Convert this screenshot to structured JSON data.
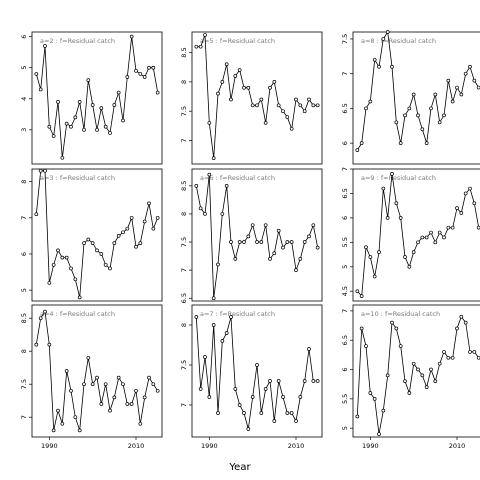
{
  "figure": {
    "xlabel": "Year"
  },
  "chart_data": [
    {
      "type": "line",
      "title": "a=2 : f=Residual catch",
      "xlim": [
        1986,
        2016
      ],
      "ylim": [
        1.9,
        6.15
      ],
      "xticks": [],
      "yticks": [
        3,
        4,
        5,
        6
      ],
      "x": [
        1987,
        1988,
        1989,
        1990,
        1991,
        1992,
        1993,
        1994,
        1995,
        1996,
        1997,
        1998,
        1999,
        2000,
        2001,
        2002,
        2003,
        2004,
        2005,
        2006,
        2007,
        2008,
        2009,
        2010,
        2011,
        2012,
        2013,
        2014,
        2015
      ],
      "y": [
        4.8,
        4.3,
        5.7,
        3.1,
        2.8,
        3.9,
        2.1,
        3.2,
        3.1,
        3.4,
        3.9,
        3.0,
        4.6,
        3.8,
        3.0,
        3.7,
        3.1,
        2.9,
        3.8,
        4.2,
        3.3,
        4.7,
        6.0,
        4.9,
        4.8,
        4.7,
        5.0,
        5.0,
        4.2
      ]
    },
    {
      "type": "line",
      "title": "a=5 : f=Residual catch",
      "xlim": [
        1986,
        2016
      ],
      "ylim": [
        6.6,
        8.85
      ],
      "xticks": [],
      "yticks": [
        7.0,
        7.5,
        8.0,
        8.5
      ],
      "x": [
        1987,
        1988,
        1989,
        1990,
        1991,
        1992,
        1993,
        1994,
        1995,
        1996,
        1997,
        1998,
        1999,
        2000,
        2001,
        2002,
        2003,
        2004,
        2005,
        2006,
        2007,
        2008,
        2009,
        2010,
        2011,
        2012,
        2013,
        2014,
        2015
      ],
      "y": [
        8.6,
        8.6,
        8.8,
        7.3,
        6.7,
        7.8,
        8.0,
        8.3,
        7.7,
        8.1,
        8.2,
        7.9,
        7.9,
        7.6,
        7.6,
        7.7,
        7.3,
        7.9,
        8.0,
        7.6,
        7.5,
        7.4,
        7.2,
        7.7,
        7.6,
        7.5,
        7.7,
        7.6,
        7.6
      ]
    },
    {
      "type": "line",
      "title": "a=8 : f=Residual catch",
      "xlim": [
        1986,
        2016
      ],
      "ylim": [
        5.7,
        7.6
      ],
      "xticks": [],
      "yticks": [
        6.0,
        6.5,
        7.0,
        7.5
      ],
      "x": [
        1987,
        1988,
        1989,
        1990,
        1991,
        1992,
        1993,
        1994,
        1995,
        1996,
        1997,
        1998,
        1999,
        2000,
        2001,
        2002,
        2003,
        2004,
        2005,
        2006,
        2007,
        2008,
        2009,
        2010,
        2011,
        2012,
        2013,
        2014,
        2015
      ],
      "y": [
        5.9,
        6.0,
        6.5,
        6.6,
        7.2,
        7.1,
        7.5,
        7.6,
        7.1,
        6.3,
        6.0,
        6.4,
        6.5,
        6.7,
        6.4,
        6.2,
        6.0,
        6.5,
        6.7,
        6.3,
        6.4,
        6.9,
        6.6,
        6.8,
        6.7,
        7.0,
        7.1,
        6.9,
        6.8
      ]
    },
    {
      "type": "line",
      "title": "a=3 : f=Residual catch",
      "xlim": [
        1986,
        2016
      ],
      "ylim": [
        4.7,
        8.35
      ],
      "xticks": [],
      "yticks": [
        5,
        6,
        7,
        8
      ],
      "x": [
        1987,
        1988,
        1989,
        1990,
        1991,
        1992,
        1993,
        1994,
        1995,
        1996,
        1997,
        1998,
        1999,
        2000,
        2001,
        2002,
        2003,
        2004,
        2005,
        2006,
        2007,
        2008,
        2009,
        2010,
        2011,
        2012,
        2013,
        2014,
        2015
      ],
      "y": [
        7.1,
        8.3,
        8.3,
        5.2,
        5.7,
        6.1,
        5.9,
        5.9,
        5.6,
        5.3,
        4.8,
        6.3,
        6.4,
        6.3,
        6.1,
        6.0,
        5.7,
        5.6,
        6.3,
        6.5,
        6.6,
        6.7,
        7.0,
        6.2,
        6.3,
        6.9,
        7.4,
        6.7,
        7.0
      ]
    },
    {
      "type": "line",
      "title": "a=6 : f=Residual catch",
      "xlim": [
        1986,
        2016
      ],
      "ylim": [
        6.45,
        8.8
      ],
      "xticks": [],
      "yticks": [
        6.5,
        7.0,
        7.5,
        8.0,
        8.5
      ],
      "x": [
        1987,
        1988,
        1989,
        1990,
        1991,
        1992,
        1993,
        1994,
        1995,
        1996,
        1997,
        1998,
        1999,
        2000,
        2001,
        2002,
        2003,
        2004,
        2005,
        2006,
        2007,
        2008,
        2009,
        2010,
        2011,
        2012,
        2013,
        2014,
        2015
      ],
      "y": [
        8.5,
        8.1,
        8.0,
        8.7,
        6.5,
        7.1,
        8.0,
        8.5,
        7.5,
        7.2,
        7.5,
        7.5,
        7.6,
        7.8,
        7.5,
        7.5,
        7.8,
        7.2,
        7.3,
        7.7,
        7.4,
        7.5,
        7.5,
        7.0,
        7.2,
        7.5,
        7.6,
        7.8,
        7.4
      ]
    },
    {
      "type": "line",
      "title": "a=9 : f=Residual catch",
      "xlim": [
        1986,
        2016
      ],
      "ylim": [
        4.3,
        7.0
      ],
      "xticks": [],
      "yticks": [
        4.5,
        5.0,
        5.5,
        6.0,
        6.5,
        7.0
      ],
      "x": [
        1987,
        1988,
        1989,
        1990,
        1991,
        1992,
        1993,
        1994,
        1995,
        1996,
        1997,
        1998,
        1999,
        2000,
        2001,
        2002,
        2003,
        2004,
        2005,
        2006,
        2007,
        2008,
        2009,
        2010,
        2011,
        2012,
        2013,
        2014,
        2015
      ],
      "y": [
        4.5,
        4.4,
        5.4,
        5.2,
        4.8,
        5.3,
        6.6,
        6.0,
        6.9,
        6.3,
        6.0,
        5.2,
        5.0,
        5.3,
        5.5,
        5.6,
        5.6,
        5.7,
        5.5,
        5.7,
        5.6,
        5.8,
        5.8,
        6.2,
        6.1,
        6.5,
        6.6,
        6.3,
        5.8
      ]
    },
    {
      "type": "line",
      "title": "a=4 : f=Residual catch",
      "xlim": [
        1986,
        2016
      ],
      "ylim": [
        6.7,
        8.7
      ],
      "xticks": [
        1990,
        2010
      ],
      "yticks": [
        7.0,
        7.5,
        8.0,
        8.5
      ],
      "x": [
        1987,
        1988,
        1989,
        1990,
        1991,
        1992,
        1993,
        1994,
        1995,
        1996,
        1997,
        1998,
        1999,
        2000,
        2001,
        2002,
        2003,
        2004,
        2005,
        2006,
        2007,
        2008,
        2009,
        2010,
        2011,
        2012,
        2013,
        2014,
        2015
      ],
      "y": [
        8.1,
        8.5,
        8.6,
        8.1,
        6.8,
        7.1,
        6.9,
        7.7,
        7.4,
        7.0,
        6.8,
        7.5,
        7.9,
        7.5,
        7.6,
        7.2,
        7.5,
        7.1,
        7.3,
        7.6,
        7.5,
        7.2,
        7.2,
        7.4,
        6.9,
        7.3,
        7.6,
        7.5,
        7.4
      ]
    },
    {
      "type": "line",
      "title": "a=7 : f=Residual catch",
      "xlim": [
        1986,
        2016
      ],
      "ylim": [
        6.6,
        8.25
      ],
      "xticks": [
        1990,
        2010
      ],
      "yticks": [
        7.0,
        7.5,
        8.0
      ],
      "x": [
        1987,
        1988,
        1989,
        1990,
        1991,
        1992,
        1993,
        1994,
        1995,
        1996,
        1997,
        1998,
        1999,
        2000,
        2001,
        2002,
        2003,
        2004,
        2005,
        2006,
        2007,
        2008,
        2009,
        2010,
        2011,
        2012,
        2013,
        2014,
        2015
      ],
      "y": [
        8.1,
        7.2,
        7.6,
        7.1,
        8.0,
        6.9,
        7.8,
        7.9,
        8.1,
        7.2,
        7.0,
        6.9,
        6.7,
        7.1,
        7.5,
        6.9,
        7.2,
        7.3,
        6.8,
        7.3,
        7.1,
        6.9,
        6.9,
        6.8,
        7.1,
        7.3,
        7.7,
        7.3,
        7.3
      ]
    },
    {
      "type": "line",
      "title": "a=10 : f=Residual catch",
      "xlim": [
        1986,
        2016
      ],
      "ylim": [
        4.85,
        7.1
      ],
      "xticks": [
        1990,
        2010
      ],
      "yticks": [
        5.0,
        5.5,
        6.0,
        6.5,
        7.0
      ],
      "x": [
        1987,
        1988,
        1989,
        1990,
        1991,
        1992,
        1993,
        1994,
        1995,
        1996,
        1997,
        1998,
        1999,
        2000,
        2001,
        2002,
        2003,
        2004,
        2005,
        2006,
        2007,
        2008,
        2009,
        2010,
        2011,
        2012,
        2013,
        2014,
        2015
      ],
      "y": [
        5.2,
        6.7,
        6.4,
        5.6,
        5.5,
        4.9,
        5.3,
        5.9,
        6.8,
        6.7,
        6.4,
        5.8,
        5.6,
        6.1,
        6.0,
        5.9,
        5.7,
        6.0,
        5.8,
        6.1,
        6.3,
        6.2,
        6.2,
        6.7,
        6.9,
        6.8,
        6.3,
        6.3,
        6.2
      ]
    }
  ]
}
